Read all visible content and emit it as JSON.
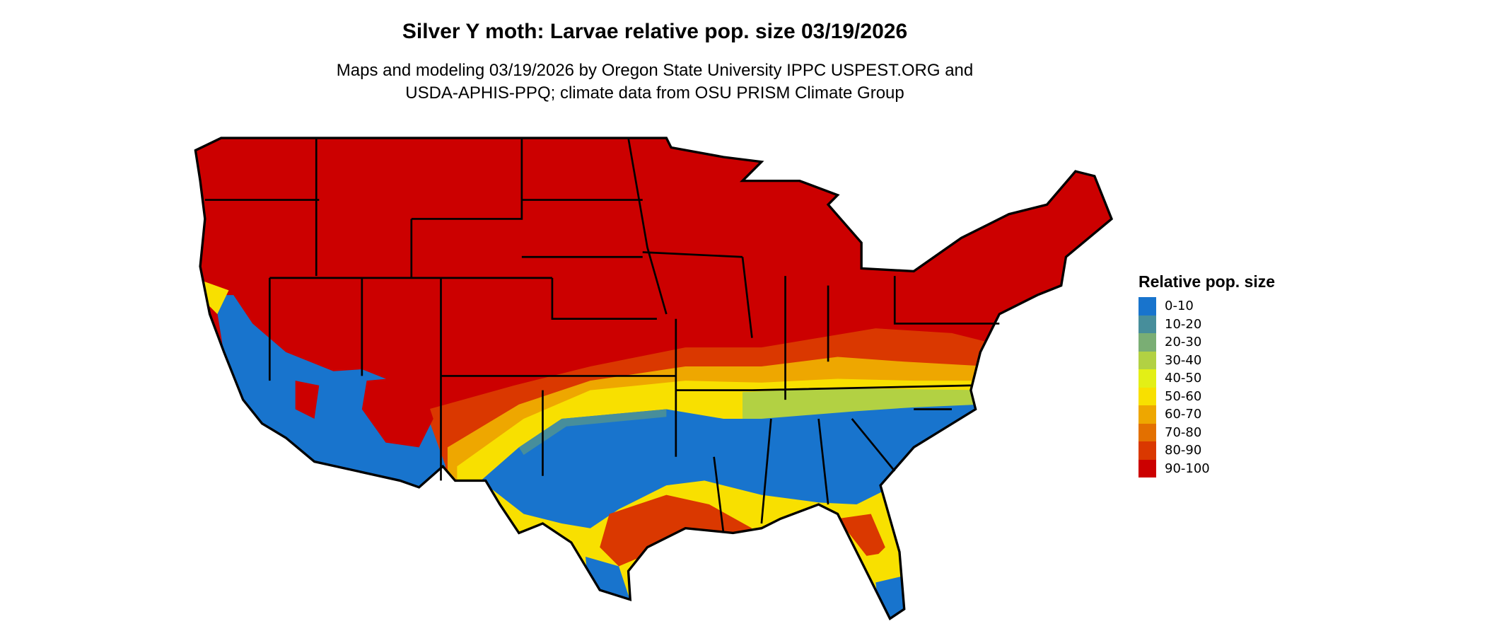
{
  "title": "Silver Y moth: Larvae relative pop. size 03/19/2026",
  "subtitle_lines": [
    "Maps and modeling 03/19/2026 by Oregon State University IPPC USPEST.ORG and",
    "USDA-APHIS-PPQ; climate data from OSU PRISM Climate Group"
  ],
  "legend": {
    "title": "Relative pop. size",
    "items": [
      {
        "label": "0-10",
        "color": "#1874CD"
      },
      {
        "label": "10-20",
        "color": "#478E9B"
      },
      {
        "label": "20-30",
        "color": "#7AAE74"
      },
      {
        "label": "30-40",
        "color": "#B2D143"
      },
      {
        "label": "40-50",
        "color": "#E3EF16"
      },
      {
        "label": "50-60",
        "color": "#F8E000"
      },
      {
        "label": "60-70",
        "color": "#EEA700"
      },
      {
        "label": "70-80",
        "color": "#E37000"
      },
      {
        "label": "80-90",
        "color": "#DA3800"
      },
      {
        "label": "90-100",
        "color": "#CC0000"
      }
    ]
  }
}
